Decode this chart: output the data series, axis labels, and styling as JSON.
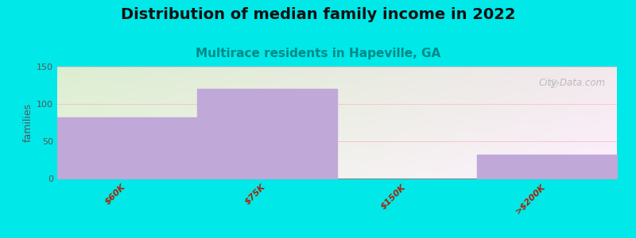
{
  "title": "Distribution of median family income in 2022",
  "subtitle": "Multirace residents in Hapeville, GA",
  "categories": [
    "$60K",
    "$75K",
    "$150K",
    ">$200K"
  ],
  "values": [
    82,
    120,
    0,
    32
  ],
  "bar_color": "#c0a8d8",
  "ylim": [
    0,
    150
  ],
  "yticks": [
    0,
    50,
    100,
    150
  ],
  "ylabel": "families",
  "background_color": "#00e8e8",
  "title_fontsize": 14,
  "subtitle_fontsize": 11,
  "subtitle_color": "#008888",
  "watermark": "City-Data.com",
  "tick_color": "#aa2200",
  "tick_fontsize": 8,
  "bar_edges": [
    0,
    1,
    2,
    3,
    4
  ]
}
